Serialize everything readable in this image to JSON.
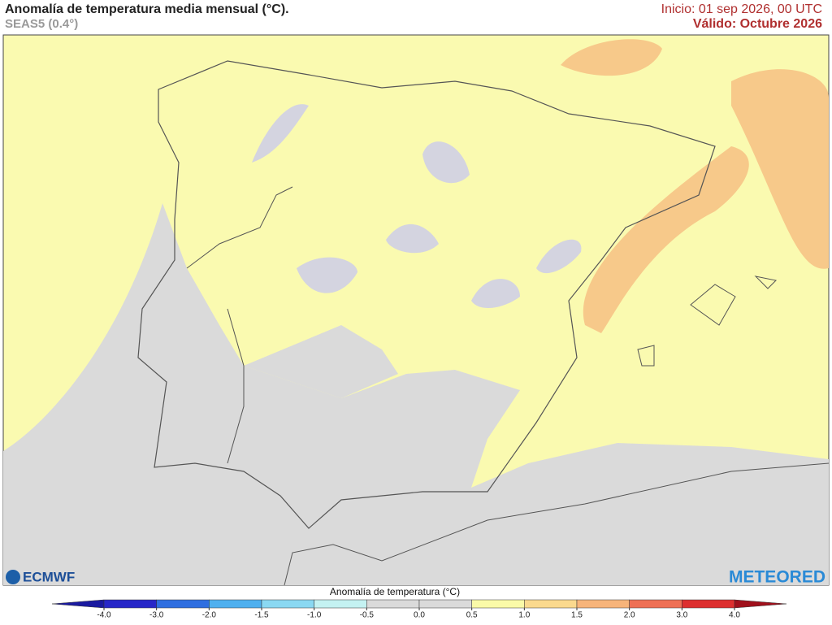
{
  "header": {
    "title": "Anomalía de temperatura media mensual (°C).",
    "subtitle": "SEAS5 (0.4°)",
    "init": "Inicio: 01 sep 2026, 00 UTC",
    "valid": "Válido: Octubre 2026"
  },
  "logos": {
    "left": "ECMWF",
    "right": "METEORED"
  },
  "colorbar": {
    "label": "Anomalía de temperatura (°C)",
    "ticks": [
      {
        "value": -4,
        "label": "-4.0"
      },
      {
        "value": -3,
        "label": "-3.0"
      },
      {
        "value": -2,
        "label": "-2.0"
      },
      {
        "value": -1.5,
        "label": "-1.5"
      },
      {
        "value": -1,
        "label": "-1.0"
      },
      {
        "value": -0.5,
        "label": "-0.5"
      },
      {
        "value": 0,
        "label": "0.0"
      },
      {
        "value": 0.5,
        "label": "0.5"
      },
      {
        "value": 1,
        "label": "1.0"
      },
      {
        "value": 1.5,
        "label": "1.5"
      },
      {
        "value": 2,
        "label": "2.0"
      },
      {
        "value": 3,
        "label": "3.0"
      },
      {
        "value": 4,
        "label": "4.0"
      }
    ],
    "colors": [
      "#2727c8",
      "#2f6fe0",
      "#4fb0ef",
      "#8ad8f2",
      "#c4f2f2",
      "#dadada",
      "#dadada",
      "#fafaa8",
      "#fad98e",
      "#f7b47a",
      "#ee7055",
      "#dd2f2f"
    ],
    "under_color": "#1a1aa0",
    "over_color": "#a0101c"
  }
}
